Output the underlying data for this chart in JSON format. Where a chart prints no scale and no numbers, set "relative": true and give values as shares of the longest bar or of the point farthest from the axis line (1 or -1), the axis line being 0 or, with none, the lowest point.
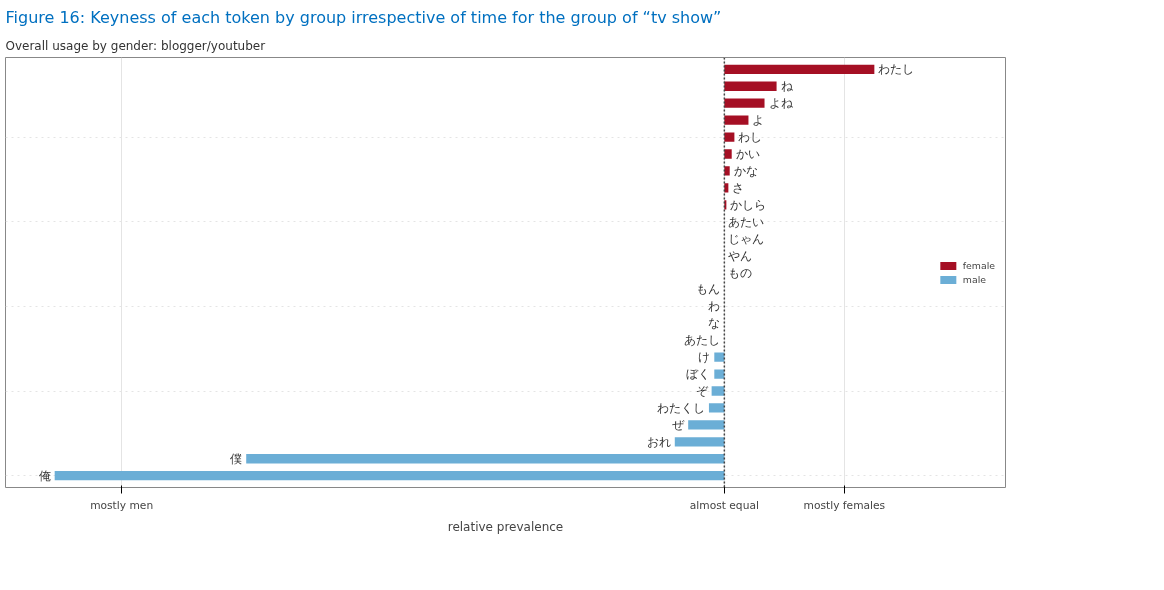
{
  "chart_data": {
    "type": "bar",
    "orientation": "horizontal",
    "relative": true,
    "title": "Figure 16: Keyness of each token by group irrespective of time for the group of “tv show”",
    "subtitle": "Overall usage by gender: blogger/youtuber",
    "xlabel": "relative prevalence",
    "categories": [
      "わたし",
      "ね",
      "よね",
      "よ",
      "わし",
      "かい",
      "かな",
      "さ",
      "かしら",
      "あたい",
      "じゃん",
      "やん",
      "もの",
      "もん",
      "わ",
      "な",
      "あたし",
      "け",
      "ぼく",
      "ぞ",
      "わたくし",
      "ぜ",
      "おれ",
      "僕",
      "俺"
    ],
    "series": [
      {
        "name": "female",
        "color": "#a50f24",
        "values": [
          0.224,
          0.078,
          0.06,
          0.036,
          0.015,
          0.011,
          0.008,
          0.006,
          0.003,
          0,
          0,
          0,
          0,
          null,
          null,
          null,
          null,
          null,
          null,
          null,
          null,
          null,
          null,
          null,
          null
        ]
      },
      {
        "name": "male",
        "color": "#6baed6",
        "values": [
          null,
          null,
          null,
          null,
          null,
          null,
          null,
          null,
          null,
          null,
          null,
          null,
          null,
          0,
          0,
          0,
          0,
          -0.015,
          -0.015,
          -0.019,
          -0.023,
          -0.054,
          -0.074,
          -0.714,
          -1
        ]
      }
    ],
    "annotations": [
      "mostly men",
      "almost equal",
      "mostly females"
    ],
    "ref_lines": [
      {
        "axis": "x",
        "value": 0,
        "line_style": "dotted",
        "color": "#444444"
      }
    ],
    "grid": true,
    "legend": "right",
    "tick_labels": "x"
  }
}
